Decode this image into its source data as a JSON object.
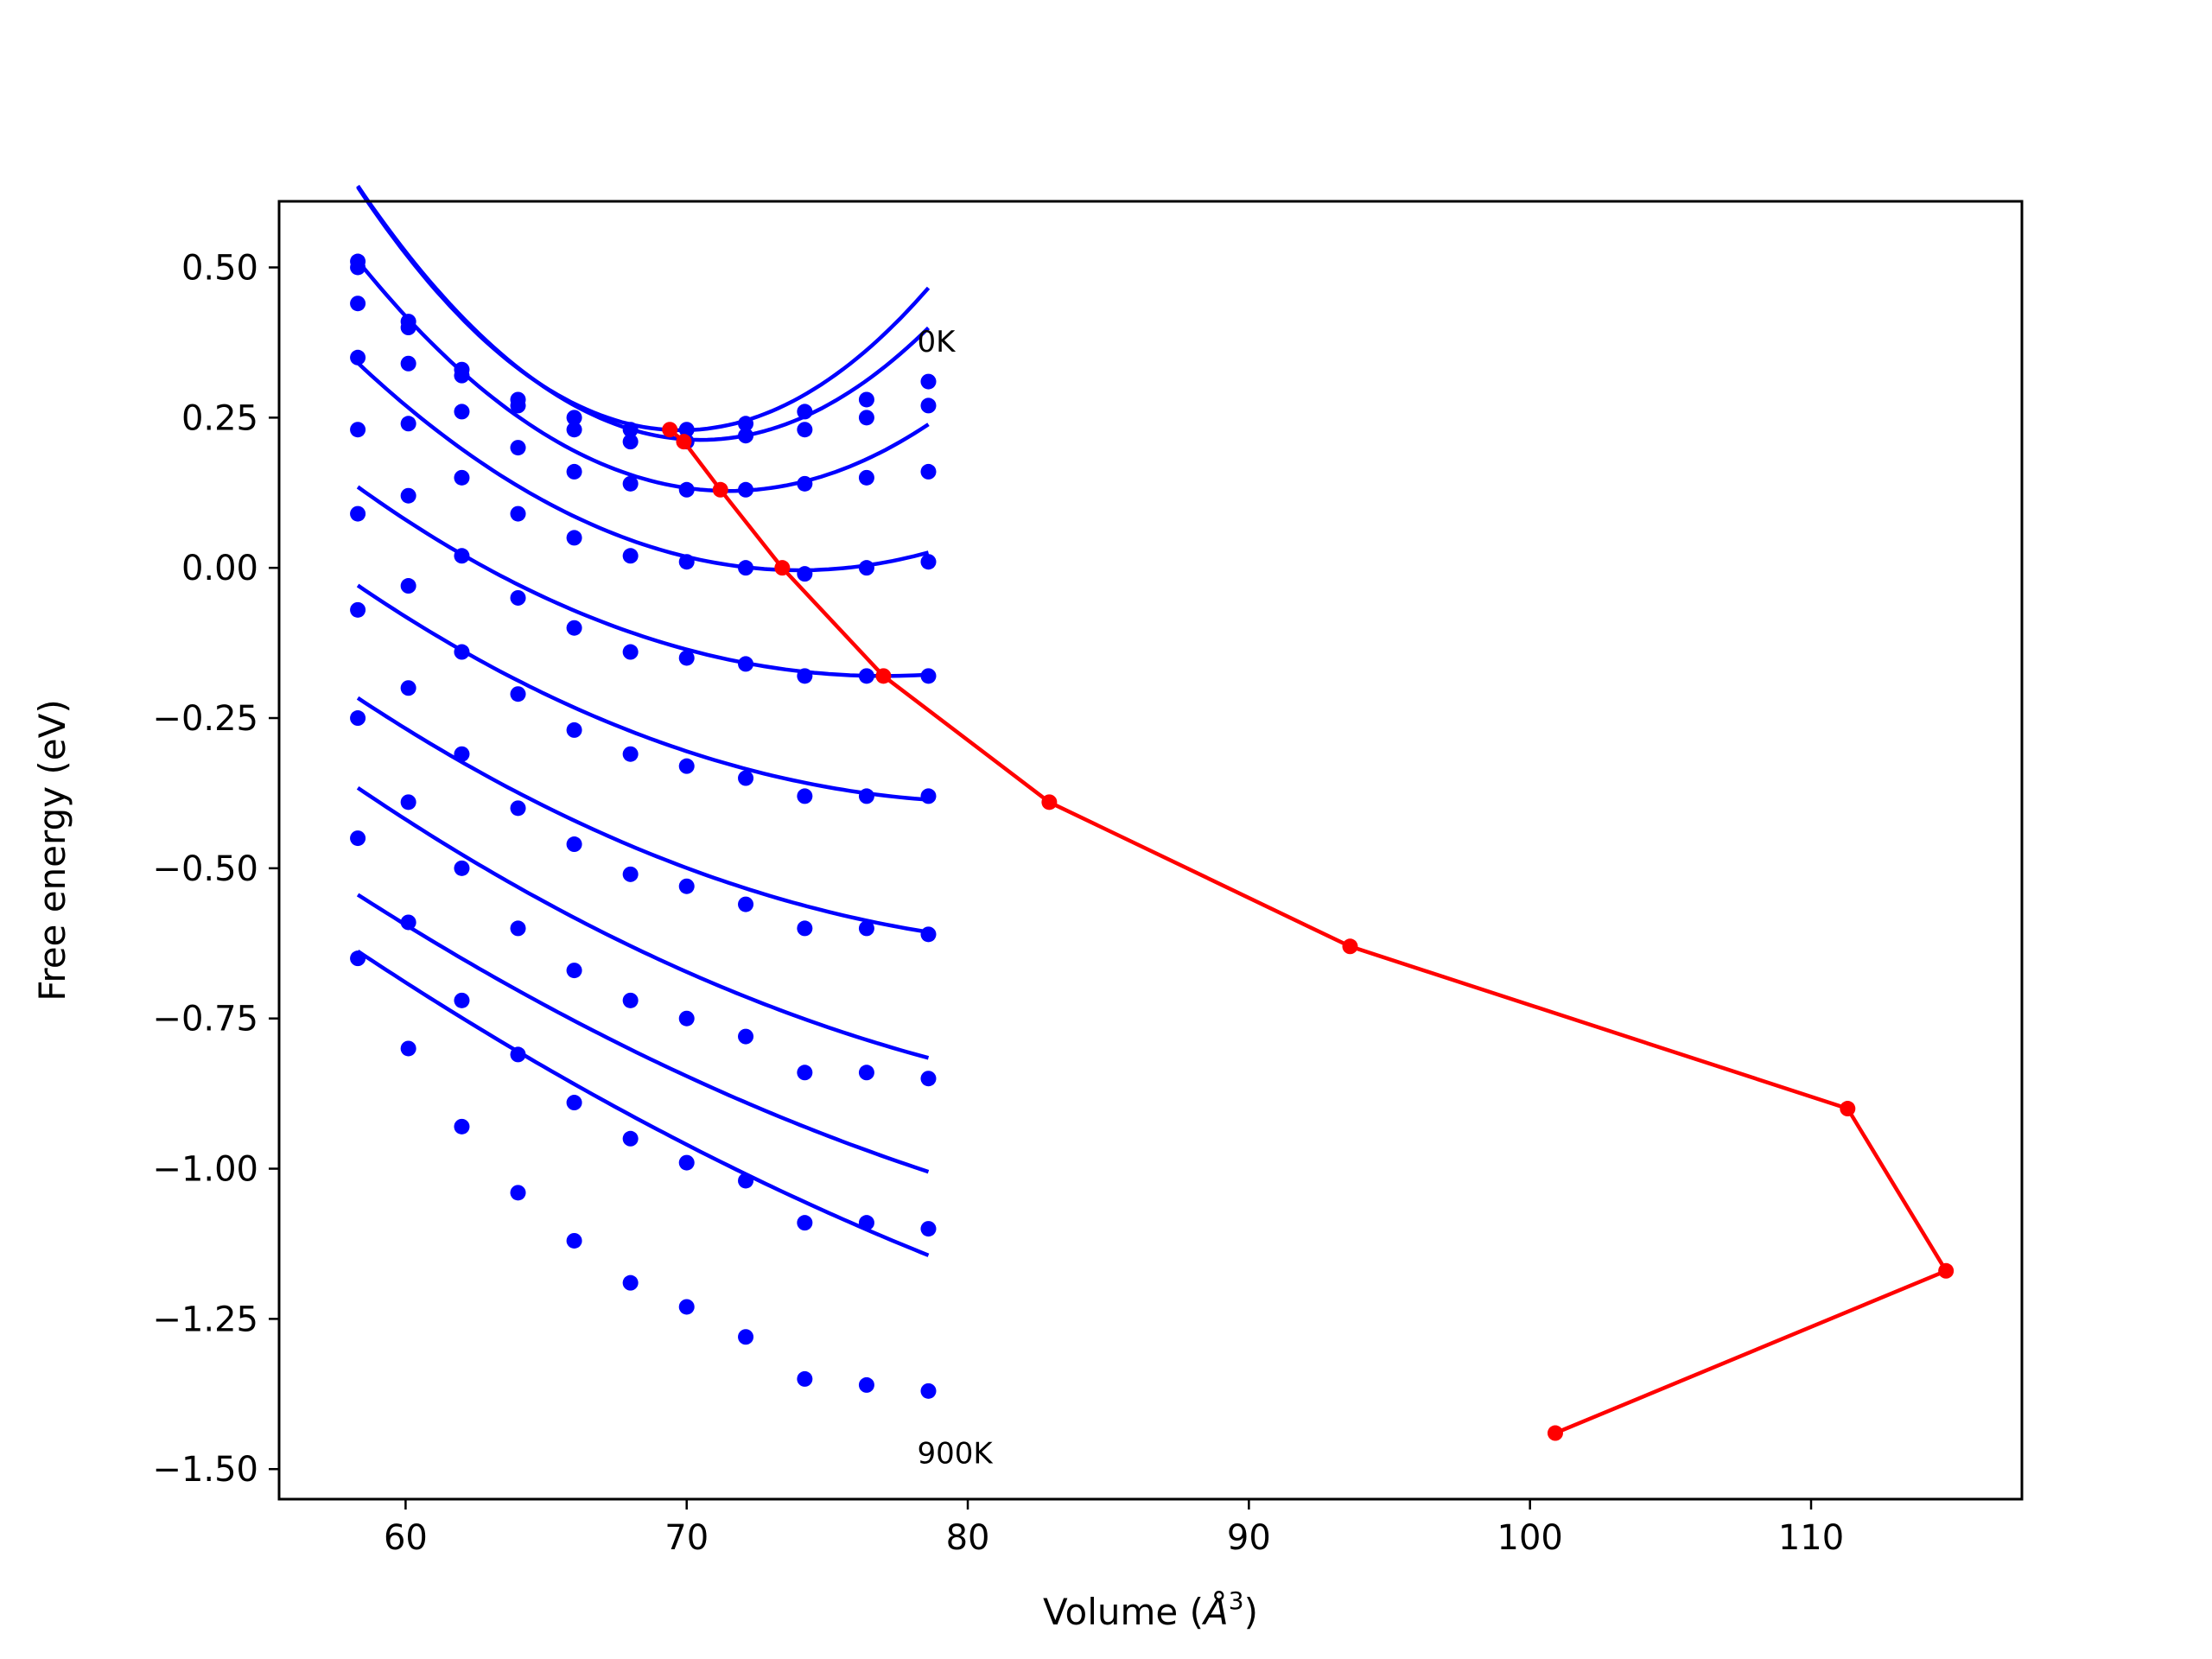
{
  "chart_data": {
    "type": "line",
    "xlabel": "Volume (",
    "xlabel_unit": "Å",
    "xlabel_exp": "3",
    "xlabel_close": ")",
    "ylabel": "Free energy (eV)",
    "xlim": [
      55.5,
      117.5
    ],
    "ylim": [
      -1.55,
      0.61
    ],
    "xticks": [
      60,
      70,
      80,
      90,
      100,
      110
    ],
    "yticks": [
      0.5,
      0.25,
      0.0,
      -0.25,
      -0.5,
      -0.75,
      -1.0,
      -1.25,
      -1.5
    ],
    "ytick_labels": [
      "0.50",
      "0.25",
      "0.00",
      "−0.25",
      "−0.50",
      "−0.75",
      "−1.00",
      "−1.25",
      "−1.50"
    ],
    "xtick_labels": [
      "60",
      "70",
      "80",
      "90",
      "100",
      "110"
    ],
    "annotations": [
      {
        "text": "0K",
        "x": 78.2,
        "y": 0.36
      },
      {
        "text": "900K",
        "x": 78.2,
        "y": -1.49
      }
    ],
    "colors": {
      "curves": "#0000ff",
      "minima": "#ff0000"
    },
    "volumes": [
      58.3,
      60.1,
      62.0,
      64.0,
      66.0,
      68.0,
      70.0,
      72.1,
      74.2,
      76.4,
      78.6
    ],
    "series": [
      {
        "values": [
          0.51,
          0.41,
          0.33,
          0.28,
          0.25,
          0.23,
          0.23,
          0.24,
          0.26,
          0.28,
          0.31
        ],
        "fit": {
          "a": 0.00306,
          "v0": 69.8,
          "c": 0.229
        }
      },
      {
        "values": [
          0.5,
          0.4,
          0.32,
          0.27,
          0.23,
          0.21,
          0.21,
          0.22,
          0.23,
          0.25,
          0.27
        ],
        "fit": {
          "a": 0.00284,
          "v0": 70.5,
          "c": 0.213
        }
      },
      {
        "values": [
          0.44,
          0.34,
          0.26,
          0.2,
          0.16,
          0.14,
          0.13,
          0.13,
          0.14,
          0.15,
          0.16
        ],
        "fit": {
          "a": 0.0022,
          "v0": 71.5,
          "c": 0.128
        }
      },
      {
        "values": [
          0.35,
          0.24,
          0.15,
          0.09,
          0.05,
          0.02,
          0.01,
          0.0,
          -0.01,
          0.0,
          0.01
        ],
        "fit": {
          "a": 0.0014,
          "v0": 74.0,
          "c": -0.004
        }
      },
      {
        "values": [
          0.23,
          0.12,
          0.02,
          -0.05,
          -0.1,
          -0.14,
          -0.15,
          -0.16,
          -0.18,
          -0.18,
          -0.18
        ],
        "fit": {
          "a": 0.0009,
          "v0": 77.0,
          "c": -0.18
        }
      },
      {
        "values": [
          0.09,
          -0.03,
          -0.14,
          -0.21,
          -0.27,
          -0.31,
          -0.33,
          -0.35,
          -0.38,
          -0.38,
          -0.38
        ],
        "fit": {
          "a": 0.0007,
          "v0": 81.0,
          "c": -0.39
        }
      },
      {
        "values": [
          -0.07,
          -0.2,
          -0.31,
          -0.4,
          -0.46,
          -0.51,
          -0.53,
          -0.56,
          -0.6,
          -0.6,
          -0.61
        ],
        "fit": {
          "a": 0.00058,
          "v0": 85.0,
          "c": -0.63
        }
      },
      {
        "values": [
          -0.25,
          -0.39,
          -0.5,
          -0.6,
          -0.67,
          -0.72,
          -0.75,
          -0.78,
          -0.84,
          -0.84,
          -0.85
        ],
        "fit": {
          "a": 0.00047,
          "v0": 92.0,
          "c": -0.9
        }
      },
      {
        "values": [
          -0.45,
          -0.59,
          -0.72,
          -0.81,
          -0.89,
          -0.95,
          -0.99,
          -1.02,
          -1.09,
          -1.09,
          -1.1
        ],
        "fit": {
          "a": 0.00036,
          "v0": 100.0,
          "c": -1.17
        }
      },
      {
        "values": [
          -0.65,
          -0.8,
          -0.93,
          -1.04,
          -1.12,
          -1.19,
          -1.23,
          -1.28,
          -1.35,
          -1.36,
          -1.37
        ],
        "fit": {
          "a": 0.0003,
          "v0": 110.0,
          "c": -1.44
        }
      }
    ],
    "minima_line": {
      "x": [
        69.4,
        69.9,
        71.2,
        73.4,
        77.0,
        82.9,
        93.6,
        111.3,
        114.8,
        100.9
      ],
      "y": [
        0.23,
        0.21,
        0.13,
        0.0,
        -0.18,
        -0.39,
        -0.63,
        -0.9,
        -1.17,
        -1.44
      ]
    }
  }
}
